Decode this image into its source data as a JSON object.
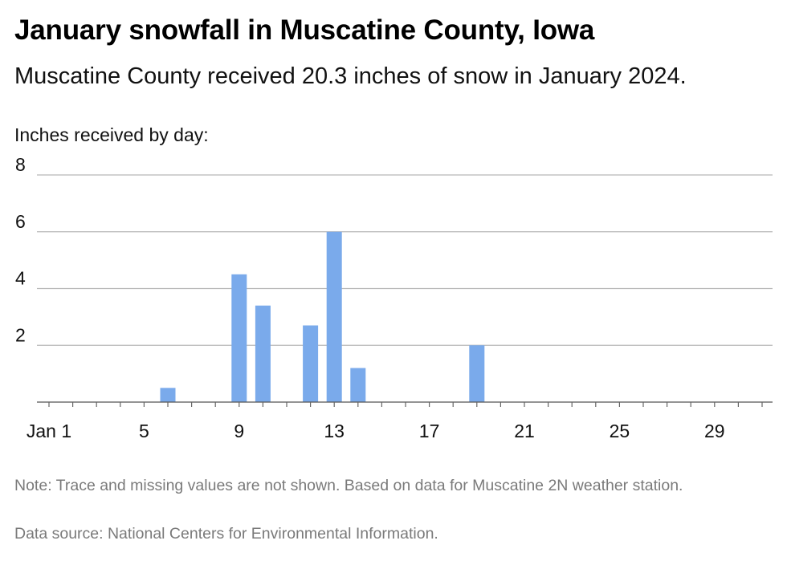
{
  "title": "January snowfall in Muscatine County, Iowa",
  "subtitle": "Muscatine County received 20.3 inches of snow in January 2024.",
  "note": "Note: Trace and missing values are not shown. Based on data for Muscatine 2N weather station.",
  "source": "Data source: National Centers for Environmental Information.",
  "chart_data": {
    "type": "bar",
    "ylabel": "Inches received by day:",
    "xlabel": "",
    "ylim": [
      0,
      8
    ],
    "yticks": [
      2,
      4,
      6,
      8
    ],
    "xlim": [
      1,
      31
    ],
    "xticks": [
      {
        "day": 1,
        "label": "Jan 1"
      },
      {
        "day": 5,
        "label": "5"
      },
      {
        "day": 9,
        "label": "9"
      },
      {
        "day": 13,
        "label": "13"
      },
      {
        "day": 17,
        "label": "17"
      },
      {
        "day": 21,
        "label": "21"
      },
      {
        "day": 25,
        "label": "25"
      },
      {
        "day": 29,
        "label": "29"
      }
    ],
    "grid": true,
    "bar_color": "#7aaaeb",
    "points": [
      {
        "day": 6,
        "value": 0.5
      },
      {
        "day": 9,
        "value": 4.5
      },
      {
        "day": 10,
        "value": 3.4
      },
      {
        "day": 12,
        "value": 2.7
      },
      {
        "day": 13,
        "value": 6.0
      },
      {
        "day": 14,
        "value": 1.2
      },
      {
        "day": 19,
        "value": 2.0
      }
    ]
  }
}
